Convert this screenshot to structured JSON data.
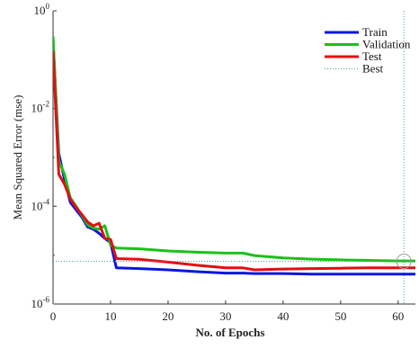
{
  "chart_data": {
    "type": "line",
    "xlabel": "No. of Epochs",
    "ylabel": "Mean Squared Error (mse)",
    "xlim": [
      0,
      63
    ],
    "xticks": [
      0,
      10,
      20,
      30,
      40,
      50,
      60
    ],
    "ylim": [
      1e-06,
      1
    ],
    "yscale": "log",
    "yticks": [
      {
        "base": "10",
        "exp": "0",
        "value": 1
      },
      {
        "base": "10",
        "exp": "-2",
        "value": 0.01
      },
      {
        "base": "10",
        "exp": "-4",
        "value": 0.0001
      },
      {
        "base": "10",
        "exp": "-6",
        "value": 1e-06
      }
    ],
    "grid": false,
    "legend_position": "top-right",
    "best_epoch": 61,
    "best_value": 7.5e-06,
    "series": [
      {
        "name": "Train",
        "color": "#0b16e0",
        "style": "solid",
        "x": [
          0,
          1,
          2,
          3,
          4,
          5,
          6,
          7,
          8,
          9,
          10,
          11,
          15,
          20,
          25,
          30,
          33,
          35,
          40,
          45,
          50,
          55,
          60,
          63
        ],
        "y": [
          0.25,
          0.0012,
          0.00035,
          0.00012,
          8.5e-05,
          6e-05,
          3.8e-05,
          3.4e-05,
          2.8e-05,
          2.2e-05,
          1.8e-05,
          5.5e-06,
          5.3e-06,
          5e-06,
          4.6e-06,
          4.3e-06,
          4.3e-06,
          4.2e-06,
          4.2e-06,
          4.1e-06,
          4.1e-06,
          4.1e-06,
          4.1e-06,
          4.1e-06
        ]
      },
      {
        "name": "Validation",
        "color": "#19c219",
        "style": "solid",
        "x": [
          0,
          1,
          2,
          3,
          4,
          5,
          6,
          7,
          8,
          9,
          10,
          11,
          15,
          20,
          25,
          30,
          33,
          35,
          40,
          45,
          50,
          55,
          60,
          63
        ],
        "y": [
          0.3,
          0.00085,
          0.00045,
          0.00015,
          0.0001,
          6.5e-05,
          4.2e-05,
          3.6e-05,
          3.4e-05,
          4e-05,
          1.6e-05,
          1.4e-05,
          1.35e-05,
          1.22e-05,
          1.15e-05,
          1.1e-05,
          1.1e-05,
          9.8e-06,
          8.8e-06,
          8.3e-06,
          8e-06,
          7.8e-06,
          7.6e-06,
          7.6e-06
        ]
      },
      {
        "name": "Test",
        "color": "#e01010",
        "style": "solid",
        "x": [
          0,
          1,
          2,
          3,
          4,
          5,
          6,
          7,
          8,
          9,
          10,
          11,
          15,
          20,
          25,
          30,
          33,
          35,
          40,
          45,
          50,
          55,
          60,
          63
        ],
        "y": [
          0.15,
          0.00045,
          0.00028,
          0.00014,
          9.5e-05,
          6.8e-05,
          4.8e-05,
          4e-05,
          4.5e-05,
          2.2e-05,
          2.1e-05,
          8.5e-06,
          8.2e-06,
          7.2e-06,
          6.2e-06,
          5.5e-06,
          5.5e-06,
          5e-06,
          5.2e-06,
          5.3e-06,
          5.4e-06,
          5.5e-06,
          5.5e-06,
          5.5e-06
        ]
      },
      {
        "name": "Best",
        "color": "#4aa3a3",
        "style": "dotted",
        "x": [
          0,
          63
        ],
        "y": [
          7.5e-06,
          7.5e-06
        ]
      }
    ]
  }
}
